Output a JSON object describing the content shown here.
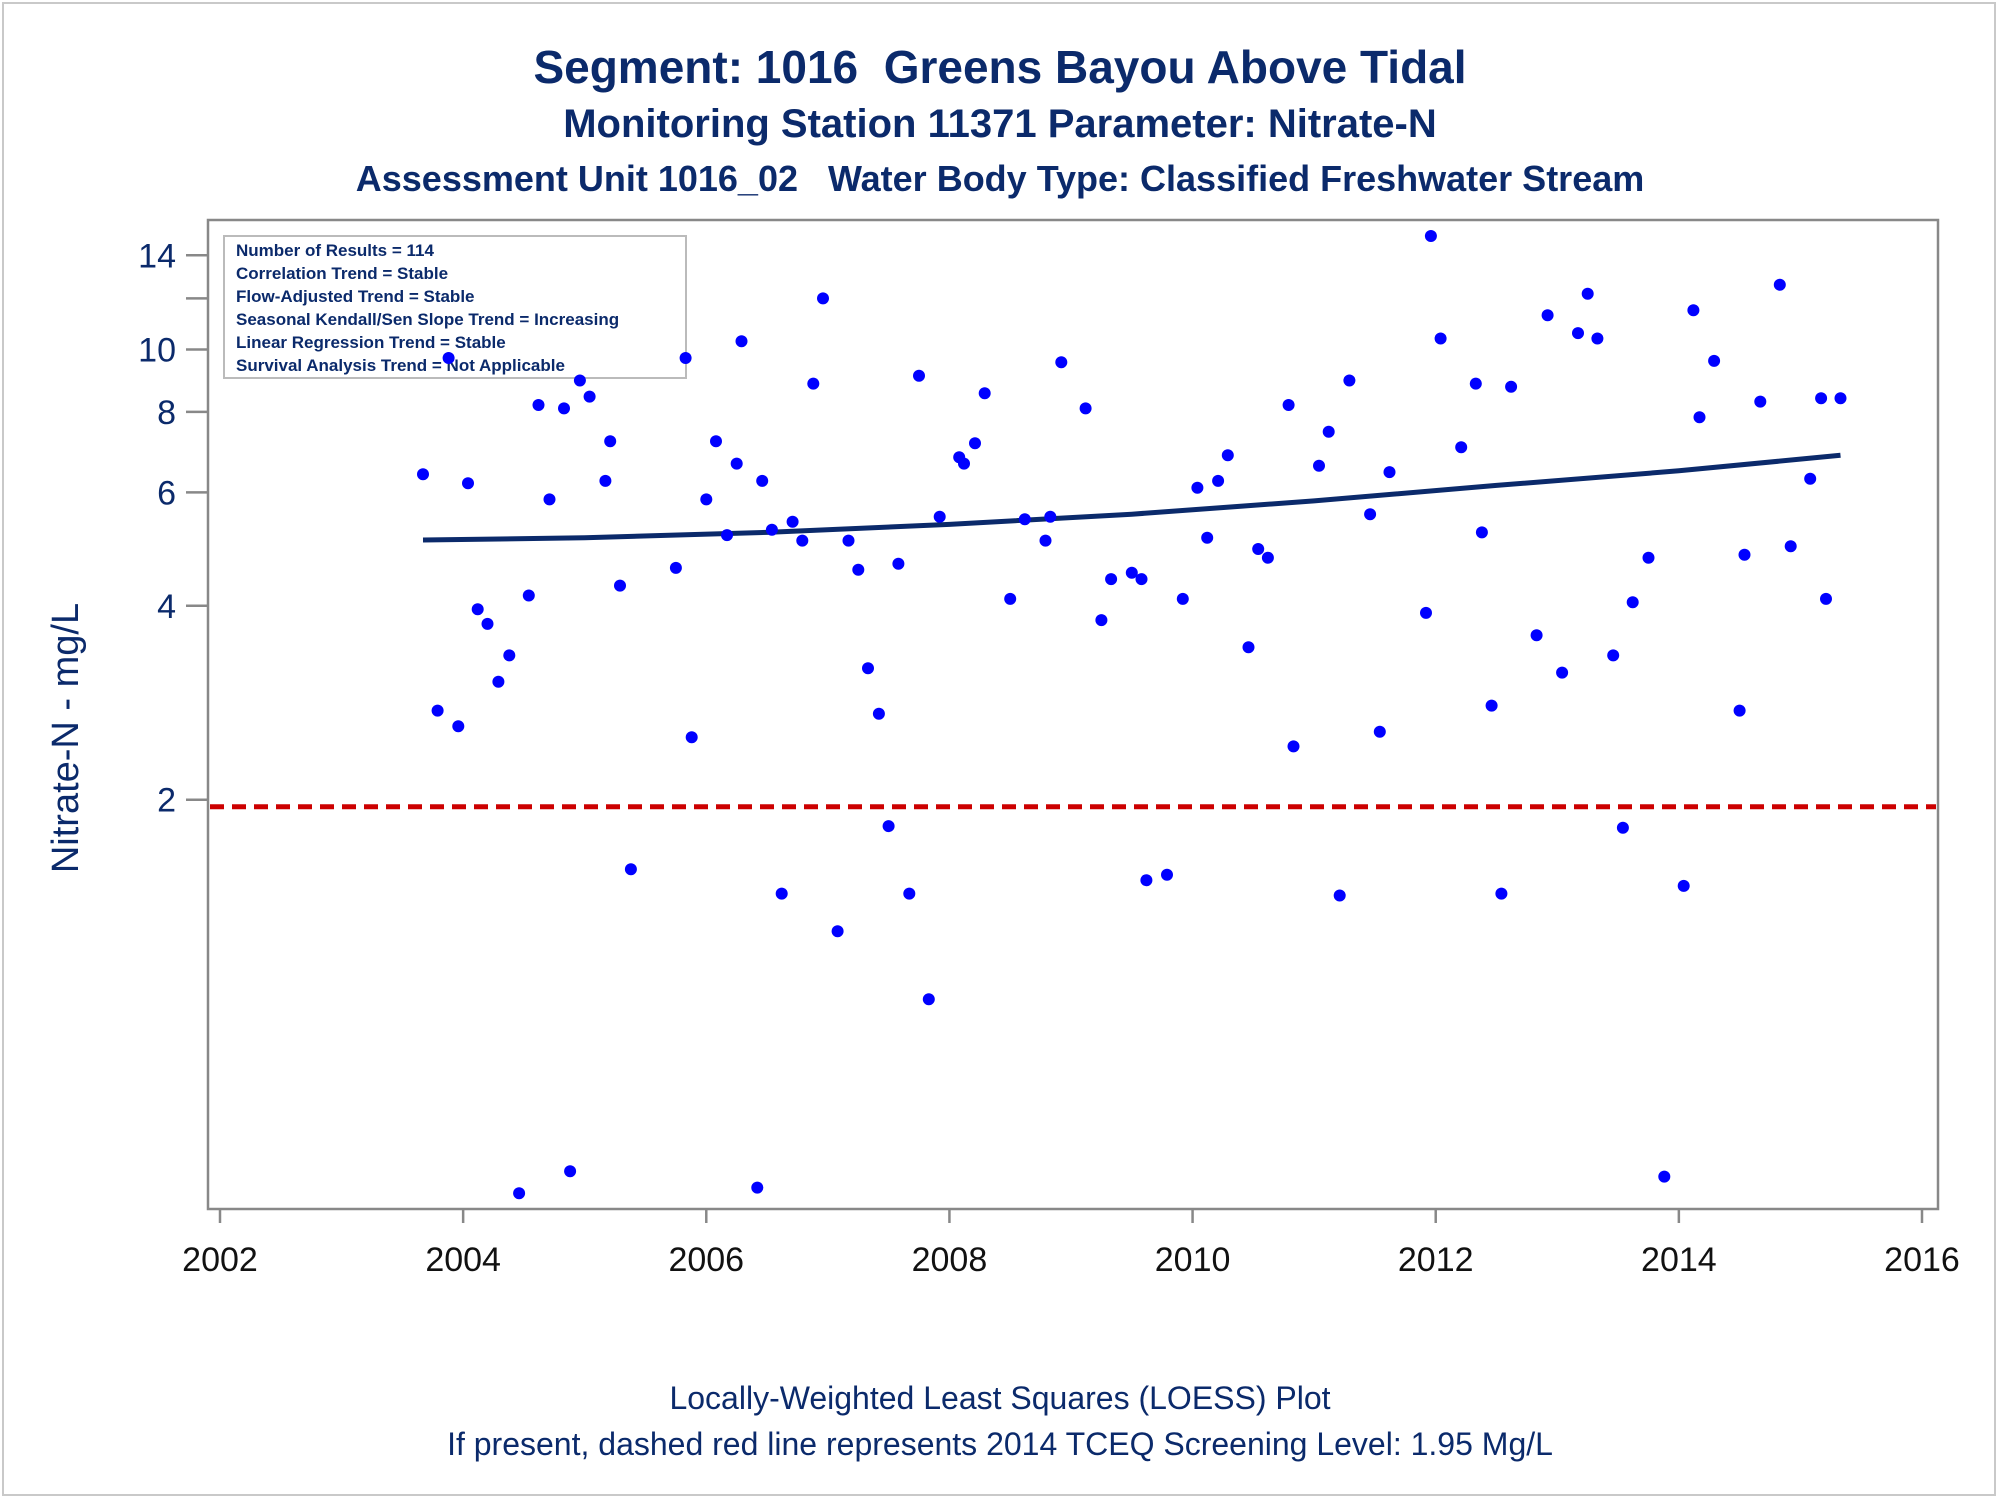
{
  "title": "Segment: 1016  Greens Bayou Above Tidal",
  "subtitle1": "Monitoring Station 11371 Parameter: Nitrate-N",
  "subtitle2": "Assessment Unit 1016_02   Water Body Type: Classified Freshwater Stream",
  "footer_line1": "Locally-Weighted Least Squares (LOESS) Plot",
  "footer_line2": "If present, dashed red line represents 2014 TCEQ Screening Level: 1.95 Mg/L",
  "info_box": [
    "Number of Results = 114",
    "Correlation Trend = Stable",
    "Flow-Adjusted Trend = Stable",
    "Seasonal Kendall/Sen Slope Trend = Increasing",
    "Linear Regression Trend = Stable",
    "Survival Analysis Trend = Not Applicable"
  ],
  "colors": {
    "title": "#0b2a6b",
    "points": "#0000ff",
    "loess": "#0b2a6b",
    "screening": "#cc0000",
    "axis": "#888888"
  },
  "chart_data": {
    "type": "scatter",
    "title": "Segment: 1016  Greens Bayou Above Tidal",
    "xlabel": "",
    "ylabel": "Nitrate-N - mg/L",
    "x_scale": "linear (year)",
    "y_scale": "log",
    "xlim": [
      2002,
      2016
    ],
    "ylim": [
      0.48,
      15.0
    ],
    "x_ticks": [
      2002,
      2004,
      2006,
      2008,
      2010,
      2012,
      2014,
      2016
    ],
    "x_tick_labels": [
      "2002",
      "2004",
      "2006",
      "2008",
      "2010",
      "2012",
      "2014",
      "2016"
    ],
    "y_ticks": [
      2,
      4,
      6,
      8,
      10,
      12,
      14
    ],
    "y_tick_labels": [
      "2",
      "4",
      "6",
      "8",
      "10",
      "",
      "14"
    ],
    "grid": false,
    "legend": "none",
    "screening_level": {
      "value": 1.95,
      "style": "dashed",
      "color": "#cc0000"
    },
    "loess": {
      "x": [
        2003.67,
        2005.0,
        2006.5,
        2008.0,
        2009.5,
        2011.0,
        2012.5,
        2014.0,
        2015.33
      ],
      "y": [
        5.06,
        5.1,
        5.2,
        5.35,
        5.55,
        5.82,
        6.15,
        6.48,
        6.85
      ]
    },
    "points": [
      [
        2003.67,
        6.4
      ],
      [
        2003.79,
        2.75
      ],
      [
        2003.88,
        9.7
      ],
      [
        2003.96,
        2.6
      ],
      [
        2004.04,
        6.2
      ],
      [
        2004.12,
        3.95
      ],
      [
        2004.2,
        3.75
      ],
      [
        2004.29,
        3.05
      ],
      [
        2004.38,
        3.35
      ],
      [
        2004.46,
        0.49
      ],
      [
        2004.54,
        4.15
      ],
      [
        2004.62,
        8.2
      ],
      [
        2004.71,
        5.85
      ],
      [
        2004.83,
        8.1
      ],
      [
        2004.88,
        0.53
      ],
      [
        2004.96,
        8.95
      ],
      [
        2005.04,
        8.45
      ],
      [
        2005.17,
        6.25
      ],
      [
        2005.21,
        7.2
      ],
      [
        2005.29,
        4.3
      ],
      [
        2005.38,
        1.56
      ],
      [
        2005.75,
        4.58
      ],
      [
        2005.83,
        9.7
      ],
      [
        2005.88,
        2.5
      ],
      [
        2006.0,
        5.85
      ],
      [
        2006.08,
        7.2
      ],
      [
        2006.17,
        5.15
      ],
      [
        2006.25,
        6.65
      ],
      [
        2006.29,
        10.3
      ],
      [
        2006.42,
        0.5
      ],
      [
        2006.46,
        6.25
      ],
      [
        2006.54,
        5.25
      ],
      [
        2006.62,
        1.43
      ],
      [
        2006.71,
        5.4
      ],
      [
        2006.79,
        5.05
      ],
      [
        2006.88,
        8.85
      ],
      [
        2006.96,
        12.0
      ],
      [
        2007.08,
        1.25
      ],
      [
        2007.17,
        5.05
      ],
      [
        2007.25,
        4.55
      ],
      [
        2007.33,
        3.2
      ],
      [
        2007.42,
        2.72
      ],
      [
        2007.5,
        1.82
      ],
      [
        2007.58,
        4.65
      ],
      [
        2007.67,
        1.43
      ],
      [
        2007.75,
        9.1
      ],
      [
        2007.83,
        0.98
      ],
      [
        2007.92,
        5.5
      ],
      [
        2008.08,
        6.8
      ],
      [
        2008.12,
        6.65
      ],
      [
        2008.21,
        7.15
      ],
      [
        2008.29,
        8.55
      ],
      [
        2008.5,
        4.1
      ],
      [
        2008.62,
        5.45
      ],
      [
        2008.79,
        5.05
      ],
      [
        2008.83,
        5.5
      ],
      [
        2008.92,
        9.55
      ],
      [
        2009.12,
        8.1
      ],
      [
        2009.25,
        3.8
      ],
      [
        2009.33,
        4.4
      ],
      [
        2009.5,
        4.5
      ],
      [
        2009.58,
        4.4
      ],
      [
        2009.62,
        1.5
      ],
      [
        2009.79,
        1.53
      ],
      [
        2009.92,
        4.1
      ],
      [
        2010.04,
        6.1
      ],
      [
        2010.12,
        5.1
      ],
      [
        2010.21,
        6.25
      ],
      [
        2010.29,
        6.85
      ],
      [
        2010.46,
        3.45
      ],
      [
        2010.54,
        4.9
      ],
      [
        2010.62,
        4.75
      ],
      [
        2010.79,
        8.2
      ],
      [
        2010.83,
        2.42
      ],
      [
        2011.04,
        6.6
      ],
      [
        2011.12,
        7.45
      ],
      [
        2011.21,
        1.42
      ],
      [
        2011.29,
        8.95
      ],
      [
        2011.46,
        5.55
      ],
      [
        2011.54,
        2.55
      ],
      [
        2011.62,
        6.45
      ],
      [
        2011.92,
        3.9
      ],
      [
        2011.96,
        15.0
      ],
      [
        2012.04,
        10.4
      ],
      [
        2012.21,
        7.05
      ],
      [
        2012.33,
        8.85
      ],
      [
        2012.38,
        5.2
      ],
      [
        2012.46,
        2.8
      ],
      [
        2012.54,
        1.43
      ],
      [
        2012.62,
        8.75
      ],
      [
        2012.83,
        3.6
      ],
      [
        2012.92,
        11.3
      ],
      [
        2013.04,
        3.15
      ],
      [
        2013.17,
        10.6
      ],
      [
        2013.25,
        12.2
      ],
      [
        2013.33,
        10.4
      ],
      [
        2013.46,
        3.35
      ],
      [
        2013.54,
        1.81
      ],
      [
        2013.62,
        4.05
      ],
      [
        2013.75,
        4.75
      ],
      [
        2013.88,
        0.52
      ],
      [
        2014.04,
        1.47
      ],
      [
        2014.12,
        11.5
      ],
      [
        2014.17,
        7.85
      ],
      [
        2014.29,
        9.6
      ],
      [
        2014.5,
        2.75
      ],
      [
        2014.54,
        4.8
      ],
      [
        2014.67,
        8.3
      ],
      [
        2014.83,
        12.6
      ],
      [
        2014.92,
        4.95
      ],
      [
        2015.08,
        6.3
      ],
      [
        2015.17,
        8.4
      ],
      [
        2015.21,
        4.1
      ],
      [
        2015.33,
        8.4
      ]
    ]
  }
}
